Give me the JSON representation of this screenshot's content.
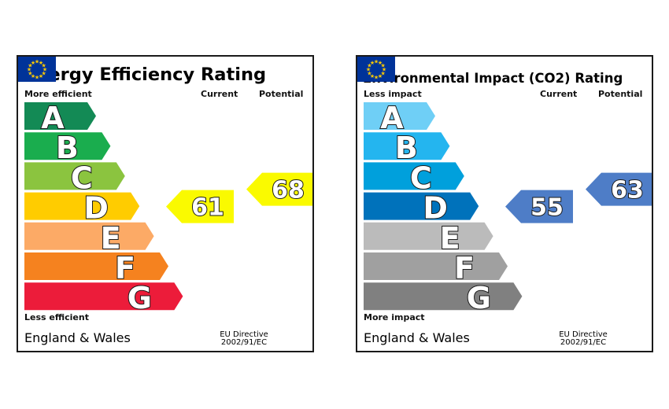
{
  "chart_data": [
    {
      "type": "bar",
      "title": "Energy Efficiency Rating",
      "top_label": "More efficient",
      "bottom_label": "Less efficient",
      "column_headers": {
        "current": "Current",
        "potential": "Potential"
      },
      "categories": [
        "A",
        "B",
        "C",
        "D",
        "E",
        "F",
        "G"
      ],
      "band_colors": [
        "#138a55",
        "#1aad4e",
        "#8bc43f",
        "#ffcc00",
        "#fcaa66",
        "#f5821f",
        "#ec1c3a"
      ],
      "current": {
        "value": 61,
        "band": "D",
        "color": "#fafa00"
      },
      "potential": {
        "value": 68,
        "band": "D",
        "color": "#fafa00"
      },
      "footer": {
        "region": "England & Wales",
        "directive": [
          "EU Directive",
          "2002/91/EC"
        ]
      }
    },
    {
      "type": "bar",
      "title": "Environmental Impact (CO2) Rating",
      "top_label": "Less impact",
      "bottom_label": "More impact",
      "column_headers": {
        "current": "Current",
        "potential": "Potential"
      },
      "categories": [
        "A",
        "B",
        "C",
        "D",
        "E",
        "F",
        "G"
      ],
      "band_colors": [
        "#6fcff6",
        "#24b5ef",
        "#00a0dc",
        "#0072bb",
        "#bbbbbb",
        "#a0a0a0",
        "#808080"
      ],
      "current": {
        "value": 55,
        "band": "D",
        "color": "#4e7dc7"
      },
      "potential": {
        "value": 63,
        "band": "D",
        "color": "#4e7dc7"
      },
      "footer": {
        "region": "England & Wales",
        "directive": [
          "EU Directive",
          "2002/91/EC"
        ]
      }
    }
  ],
  "eu_flag": {
    "icon": "eu-flag-icon",
    "background": "#003399",
    "stars": "#ffcc00"
  }
}
